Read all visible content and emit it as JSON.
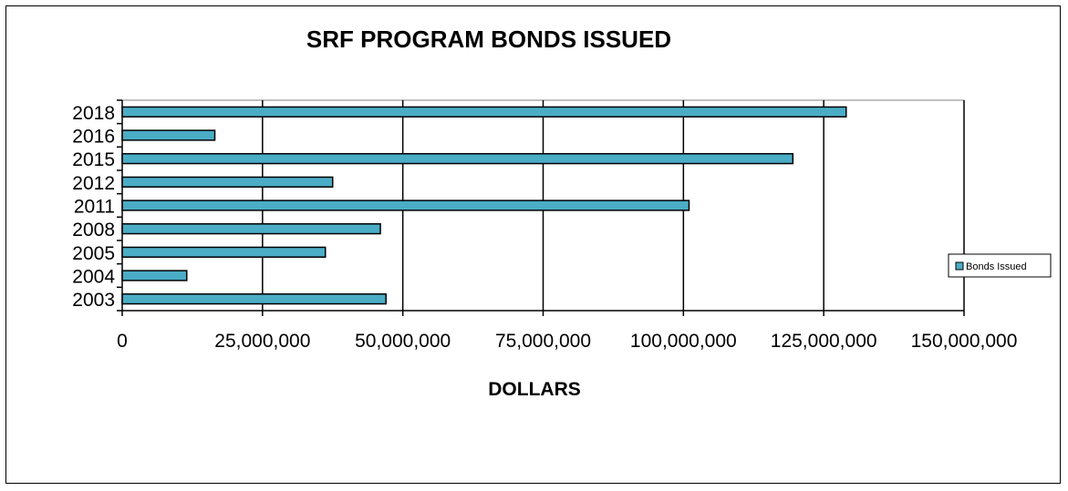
{
  "chart_data": {
    "type": "bar",
    "orientation": "horizontal",
    "title": "SRF PROGRAM BONDS ISSUED",
    "xlabel": "DOLLARS",
    "ylabel": "",
    "categories": [
      "2018",
      "2016",
      "2015",
      "2012",
      "2011",
      "2008",
      "2005",
      "2004",
      "2003"
    ],
    "series": [
      {
        "name": "Bonds Issued",
        "color": "#4bacc6",
        "values": [
          129000000,
          16500000,
          119500000,
          37500000,
          101000000,
          46000000,
          36200000,
          11500000,
          47000000
        ]
      }
    ],
    "xlim": [
      0,
      150000000
    ],
    "xticks": [
      0,
      25000000,
      50000000,
      75000000,
      100000000,
      125000000,
      150000000
    ],
    "xtick_labels": [
      "0",
      "25,000,000",
      "50,000,000",
      "75,000,000",
      "100,000,000",
      "125,000,000",
      "150,000,000"
    ],
    "grid": "vertical major gridlines",
    "legend_position": "right"
  }
}
